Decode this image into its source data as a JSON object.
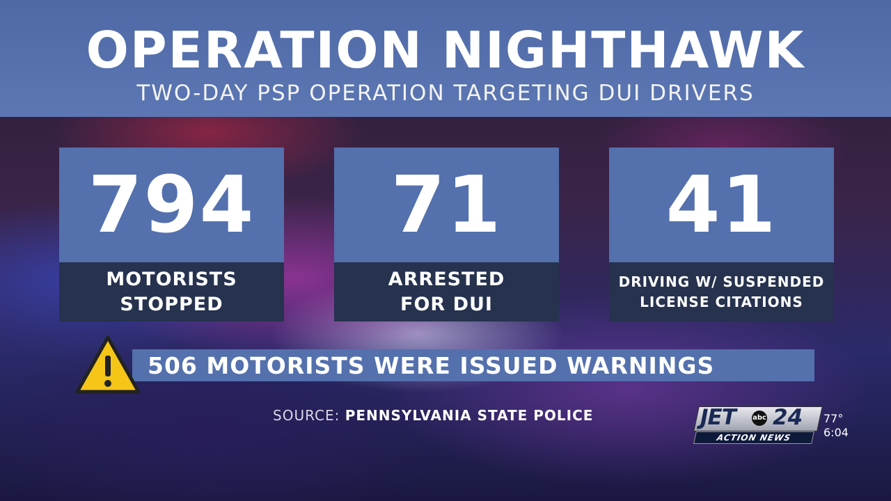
{
  "header": {
    "title": "OPERATION NIGHTHAWK",
    "subtitle": "TWO-DAY PSP OPERATION TARGETING DUI DRIVERS"
  },
  "stats": [
    {
      "value": "794",
      "label": "MOTORISTS\nSTOPPED"
    },
    {
      "value": "71",
      "label": "ARRESTED\nFOR DUI"
    },
    {
      "value": "41",
      "label": "DRIVING W/ SUSPENDED\nLICENSE CITATIONS"
    }
  ],
  "warning": {
    "text": "506 MOTORISTS WERE ISSUED WARNINGS",
    "icon": "warning-triangle-icon"
  },
  "source": {
    "prefix": "SOURCE:",
    "name": "PENNSYLVANIA STATE POLICE"
  },
  "station": {
    "brand": "JET",
    "number": "24",
    "network": "abc",
    "tagline": "ACTION NEWS",
    "temperature": "77°",
    "time": "6:04"
  },
  "colors": {
    "panel_blue": "#5470ad",
    "label_navy": "#26324e",
    "warning_yellow": "#f5c518"
  }
}
